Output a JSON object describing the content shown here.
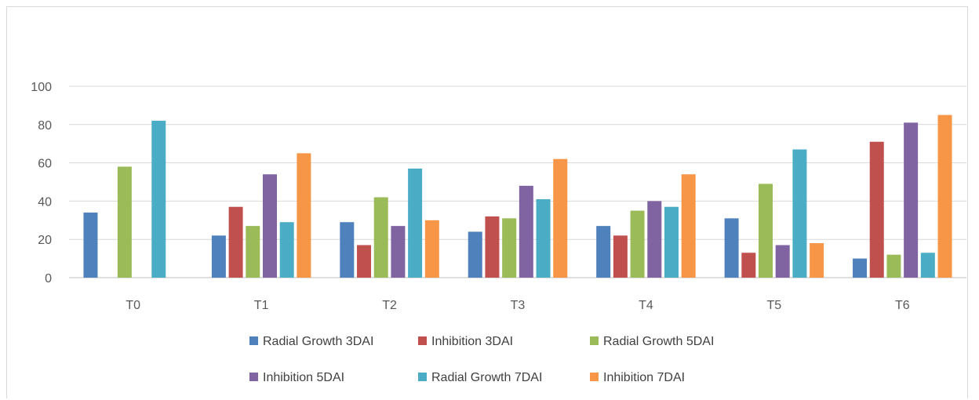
{
  "chart_data": {
    "type": "bar",
    "title": "",
    "xlabel": "",
    "ylabel": "",
    "ylim": [
      0,
      100
    ],
    "yticks": [
      0,
      20,
      40,
      60,
      80,
      100
    ],
    "grid": true,
    "legend_position": "bottom",
    "categories": [
      "T0",
      "T1",
      "T2",
      "T3",
      "T4",
      "T5",
      "T6"
    ],
    "series": [
      {
        "name": "Radial Growth 3DAI",
        "color": "#4f81bd",
        "values": [
          34,
          22,
          29,
          24,
          27,
          31,
          10
        ]
      },
      {
        "name": "Inhibition 3DAI",
        "color": "#c0504d",
        "values": [
          0,
          37,
          17,
          32,
          22,
          13,
          71
        ]
      },
      {
        "name": "Radial Growth 5DAI",
        "color": "#9bbb59",
        "values": [
          58,
          27,
          42,
          31,
          35,
          49,
          12
        ]
      },
      {
        "name": "Inhibition 5DAI",
        "color": "#8064a2",
        "values": [
          0,
          54,
          27,
          48,
          40,
          17,
          81
        ]
      },
      {
        "name": "Radial Growth 7DAI",
        "color": "#4bacc6",
        "values": [
          82,
          29,
          57,
          41,
          37,
          67,
          13
        ]
      },
      {
        "name": "Inhibition 7DAI",
        "color": "#f79646",
        "values": [
          0,
          65,
          30,
          62,
          54,
          18,
          85
        ]
      }
    ]
  }
}
